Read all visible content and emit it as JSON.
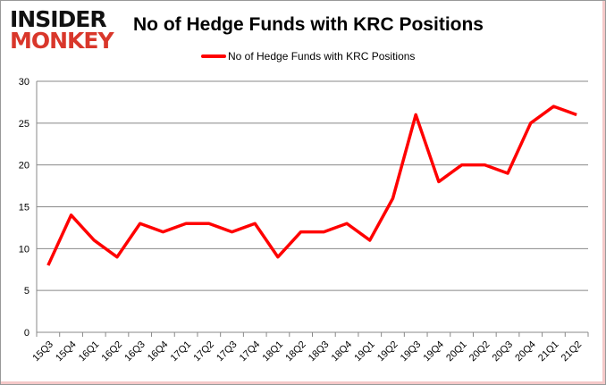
{
  "logo": {
    "line1": "INSIDER",
    "line2": "MONKEY"
  },
  "chart_data": {
    "type": "line",
    "title": "No of Hedge Funds with KRC Positions",
    "xlabel": "",
    "ylabel": "",
    "categories": [
      "15Q3",
      "15Q4",
      "16Q1",
      "16Q2",
      "16Q3",
      "16Q4",
      "17Q1",
      "17Q2",
      "17Q3",
      "17Q4",
      "18Q1",
      "18Q2",
      "18Q3",
      "18Q4",
      "19Q1",
      "19Q2",
      "19Q3",
      "19Q4",
      "20Q1",
      "20Q2",
      "20Q3",
      "20Q4",
      "21Q1",
      "21Q2"
    ],
    "series": [
      {
        "name": "No of Hedge Funds with KRC Positions",
        "color": "#ff0000",
        "values": [
          8,
          14,
          11,
          9,
          13,
          12,
          13,
          13,
          12,
          13,
          9,
          12,
          12,
          13,
          11,
          16,
          26,
          18,
          20,
          20,
          19,
          25,
          27,
          26
        ]
      }
    ],
    "ylim": [
      0,
      30
    ],
    "yticks": [
      0,
      5,
      10,
      15,
      20,
      25,
      30
    ],
    "grid": true,
    "legend": "top-center"
  }
}
